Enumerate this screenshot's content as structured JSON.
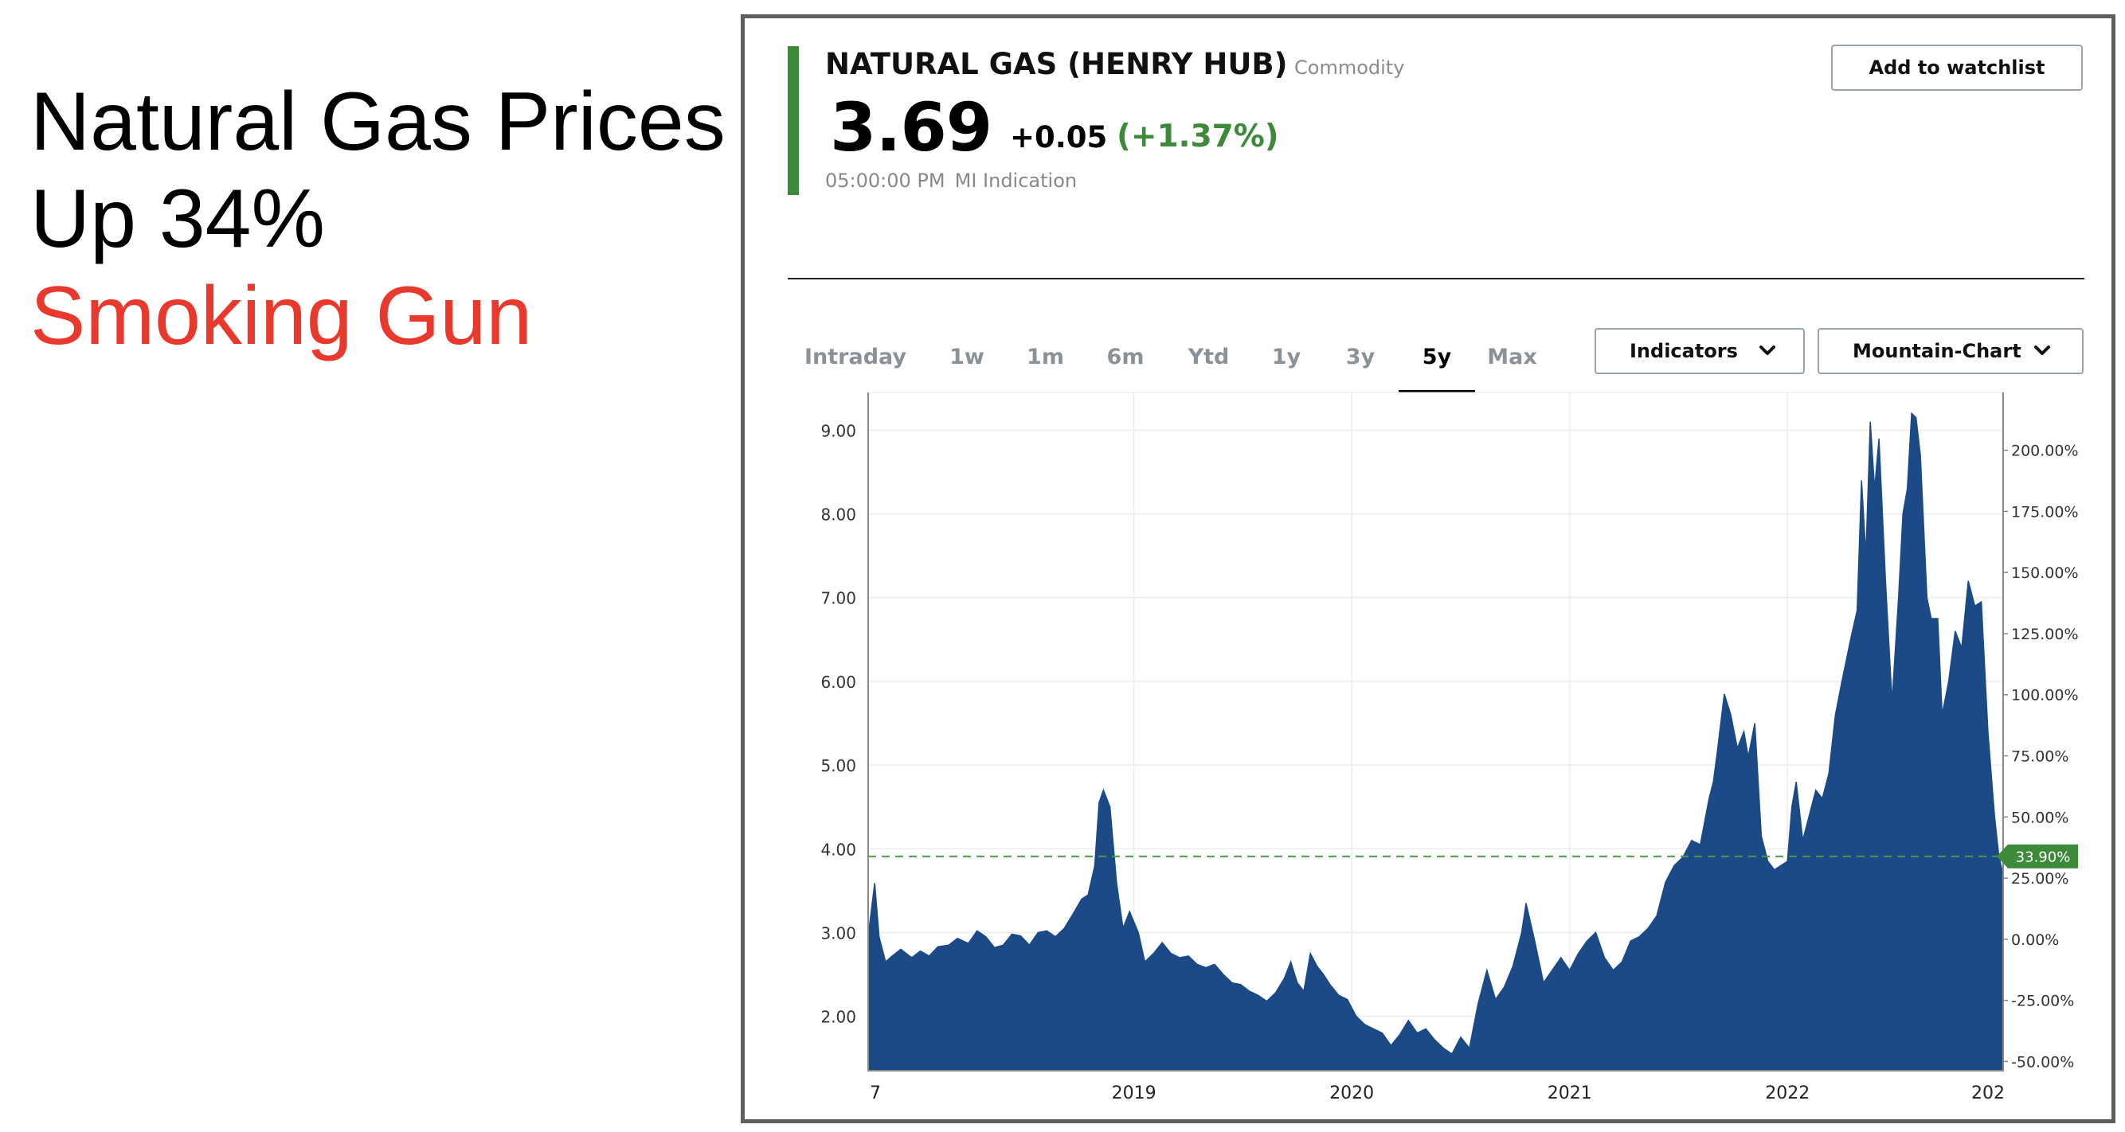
{
  "slide": {
    "title_line1": "Natural Gas Prices",
    "title_line2": "Up 34%",
    "subtitle": "Smoking Gun"
  },
  "quote": {
    "name": "NATURAL GAS (HENRY HUB)",
    "type": "Commodity",
    "price": "3.69",
    "change": "+0.05",
    "change_pct": "(+1.37%)",
    "time": "05:00:00 PM",
    "source": "MI Indication",
    "watchlist_label": "Add to watchlist"
  },
  "tabs": [
    {
      "label": "Intraday",
      "active": false
    },
    {
      "label": "1w",
      "active": false
    },
    {
      "label": "1m",
      "active": false
    },
    {
      "label": "6m",
      "active": false
    },
    {
      "label": "Ytd",
      "active": false
    },
    {
      "label": "1y",
      "active": false
    },
    {
      "label": "3y",
      "active": false
    },
    {
      "label": "5y",
      "active": true
    },
    {
      "label": "Max",
      "active": false
    }
  ],
  "controls": {
    "indicators_label": "Indicators",
    "indicators_icon": "chevron-down-icon",
    "charttype_label": "Mountain-Chart",
    "charttype_icon": "chevron-down-icon"
  },
  "colors": {
    "accent": "#3d8a3a",
    "area_fill": "#1b4a86",
    "title_red": "#e8392c",
    "badge": "#3d8a3a"
  },
  "chart_data": {
    "type": "area",
    "x_tick_labels": [
      "7",
      "2019",
      "2020",
      "2021",
      "2022",
      "202"
    ],
    "x_tick_years": [
      2017.78,
      2019.0,
      2020.0,
      2021.0,
      2022.0,
      2023.0
    ],
    "xlim": [
      2017.78,
      2022.99
    ],
    "y_left_ticks": [
      "2.00",
      "3.00",
      "4.00",
      "5.00",
      "6.00",
      "7.00",
      "8.00",
      "9.00"
    ],
    "y_left_values": [
      2,
      3,
      4,
      5,
      6,
      7,
      8,
      9
    ],
    "ylim_left": [
      1.35,
      9.45
    ],
    "y_right_ticks": [
      "-50.00%",
      "-25.00%",
      "0.00%",
      "25.00%",
      "50.00%",
      "75.00%",
      "100.00%",
      "125.00%",
      "150.00%",
      "175.00%",
      "200.00%"
    ],
    "y_right_values": [
      -50,
      -25,
      0,
      25,
      50,
      75,
      100,
      125,
      150,
      175,
      200
    ],
    "baseline_price": 2.92,
    "reference_line": {
      "value_pct": 33.9,
      "label": "33.90%",
      "style": "dashed"
    },
    "grid": true,
    "series": [
      {
        "values": [
          [
            2017.78,
            2.95
          ],
          [
            2017.81,
            3.59
          ],
          [
            2017.83,
            2.95
          ],
          [
            2017.86,
            2.65
          ],
          [
            2017.89,
            2.72
          ],
          [
            2017.93,
            2.8
          ],
          [
            2017.98,
            2.7
          ],
          [
            2018.02,
            2.78
          ],
          [
            2018.06,
            2.72
          ],
          [
            2018.1,
            2.83
          ],
          [
            2018.15,
            2.85
          ],
          [
            2018.19,
            2.93
          ],
          [
            2018.24,
            2.87
          ],
          [
            2018.28,
            3.02
          ],
          [
            2018.32,
            2.95
          ],
          [
            2018.36,
            2.82
          ],
          [
            2018.4,
            2.85
          ],
          [
            2018.44,
            2.98
          ],
          [
            2018.48,
            2.96
          ],
          [
            2018.52,
            2.85
          ],
          [
            2018.56,
            3.0
          ],
          [
            2018.6,
            3.02
          ],
          [
            2018.64,
            2.95
          ],
          [
            2018.68,
            3.05
          ],
          [
            2018.72,
            3.22
          ],
          [
            2018.76,
            3.4
          ],
          [
            2018.79,
            3.45
          ],
          [
            2018.82,
            3.8
          ],
          [
            2018.84,
            4.55
          ],
          [
            2018.86,
            4.7
          ],
          [
            2018.89,
            4.5
          ],
          [
            2018.92,
            3.6
          ],
          [
            2018.95,
            3.05
          ],
          [
            2018.98,
            3.25
          ],
          [
            2019.02,
            3.0
          ],
          [
            2019.05,
            2.65
          ],
          [
            2019.09,
            2.75
          ],
          [
            2019.13,
            2.88
          ],
          [
            2019.17,
            2.75
          ],
          [
            2019.21,
            2.7
          ],
          [
            2019.25,
            2.72
          ],
          [
            2019.29,
            2.62
          ],
          [
            2019.33,
            2.58
          ],
          [
            2019.37,
            2.62
          ],
          [
            2019.41,
            2.5
          ],
          [
            2019.45,
            2.4
          ],
          [
            2019.49,
            2.38
          ],
          [
            2019.53,
            2.3
          ],
          [
            2019.57,
            2.25
          ],
          [
            2019.61,
            2.18
          ],
          [
            2019.65,
            2.28
          ],
          [
            2019.69,
            2.45
          ],
          [
            2019.72,
            2.65
          ],
          [
            2019.75,
            2.4
          ],
          [
            2019.78,
            2.3
          ],
          [
            2019.81,
            2.75
          ],
          [
            2019.84,
            2.6
          ],
          [
            2019.87,
            2.5
          ],
          [
            2019.9,
            2.38
          ],
          [
            2019.94,
            2.25
          ],
          [
            2019.98,
            2.2
          ],
          [
            2020.02,
            2.0
          ],
          [
            2020.06,
            1.9
          ],
          [
            2020.1,
            1.85
          ],
          [
            2020.14,
            1.8
          ],
          [
            2020.18,
            1.65
          ],
          [
            2020.22,
            1.78
          ],
          [
            2020.26,
            1.95
          ],
          [
            2020.3,
            1.8
          ],
          [
            2020.34,
            1.85
          ],
          [
            2020.38,
            1.72
          ],
          [
            2020.42,
            1.62
          ],
          [
            2020.46,
            1.55
          ],
          [
            2020.5,
            1.75
          ],
          [
            2020.54,
            1.62
          ],
          [
            2020.58,
            2.15
          ],
          [
            2020.62,
            2.55
          ],
          [
            2020.66,
            2.2
          ],
          [
            2020.7,
            2.35
          ],
          [
            2020.74,
            2.6
          ],
          [
            2020.78,
            3.0
          ],
          [
            2020.8,
            3.35
          ],
          [
            2020.84,
            2.9
          ],
          [
            2020.88,
            2.4
          ],
          [
            2020.92,
            2.55
          ],
          [
            2020.96,
            2.7
          ],
          [
            2021.0,
            2.55
          ],
          [
            2021.04,
            2.75
          ],
          [
            2021.08,
            2.9
          ],
          [
            2021.12,
            3.0
          ],
          [
            2021.16,
            2.7
          ],
          [
            2021.2,
            2.55
          ],
          [
            2021.24,
            2.65
          ],
          [
            2021.28,
            2.9
          ],
          [
            2021.32,
            2.95
          ],
          [
            2021.36,
            3.05
          ],
          [
            2021.4,
            3.2
          ],
          [
            2021.44,
            3.6
          ],
          [
            2021.48,
            3.8
          ],
          [
            2021.52,
            3.9
          ],
          [
            2021.56,
            4.1
          ],
          [
            2021.6,
            4.05
          ],
          [
            2021.64,
            4.6
          ],
          [
            2021.66,
            4.8
          ],
          [
            2021.68,
            5.2
          ],
          [
            2021.71,
            5.85
          ],
          [
            2021.74,
            5.6
          ],
          [
            2021.77,
            5.2
          ],
          [
            2021.8,
            5.4
          ],
          [
            2021.82,
            5.1
          ],
          [
            2021.85,
            5.5
          ],
          [
            2021.88,
            4.15
          ],
          [
            2021.91,
            3.85
          ],
          [
            2021.94,
            3.75
          ],
          [
            2021.97,
            3.8
          ],
          [
            2022.0,
            3.85
          ],
          [
            2022.02,
            4.5
          ],
          [
            2022.04,
            4.8
          ],
          [
            2022.07,
            4.1
          ],
          [
            2022.1,
            4.4
          ],
          [
            2022.13,
            4.7
          ],
          [
            2022.16,
            4.6
          ],
          [
            2022.19,
            4.9
          ],
          [
            2022.22,
            5.6
          ],
          [
            2022.25,
            6.0
          ],
          [
            2022.29,
            6.5
          ],
          [
            2022.32,
            6.85
          ],
          [
            2022.34,
            8.4
          ],
          [
            2022.36,
            7.5
          ],
          [
            2022.38,
            9.1
          ],
          [
            2022.4,
            8.3
          ],
          [
            2022.42,
            8.9
          ],
          [
            2022.45,
            7.2
          ],
          [
            2022.48,
            5.75
          ],
          [
            2022.51,
            7.0
          ],
          [
            2022.53,
            8.0
          ],
          [
            2022.55,
            8.3
          ],
          [
            2022.57,
            9.2
          ],
          [
            2022.59,
            9.15
          ],
          [
            2022.61,
            8.7
          ],
          [
            2022.64,
            7.0
          ],
          [
            2022.66,
            6.75
          ],
          [
            2022.69,
            6.75
          ],
          [
            2022.71,
            5.6
          ],
          [
            2022.74,
            6.0
          ],
          [
            2022.77,
            6.6
          ],
          [
            2022.8,
            6.4
          ],
          [
            2022.83,
            7.2
          ],
          [
            2022.86,
            6.9
          ],
          [
            2022.89,
            6.95
          ],
          [
            2022.92,
            5.4
          ],
          [
            2022.95,
            4.4
          ],
          [
            2022.97,
            3.92
          ],
          [
            2022.99,
            3.69
          ]
        ]
      }
    ]
  }
}
